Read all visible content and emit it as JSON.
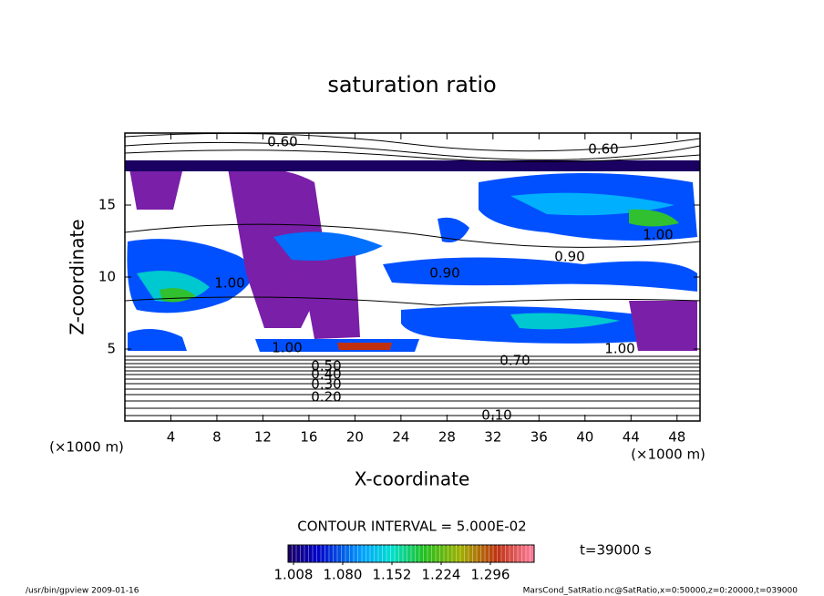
{
  "chart_data": {
    "type": "contour",
    "title": "saturation ratio",
    "x_label": "X-coordinate",
    "y_label": "Z-coordinate",
    "x_unit_label": "(×1000 m)",
    "y_unit_label": "(×1000 m)",
    "xlim": [
      0,
      50
    ],
    "ylim": [
      0,
      20
    ],
    "xticks": [
      4,
      8,
      12,
      16,
      20,
      24,
      28,
      32,
      36,
      40,
      44,
      48
    ],
    "yticks": [
      5,
      10,
      15
    ],
    "contour_interval": "CONTOUR INTERVAL = 5.000E-02",
    "contour_labels": [
      "0.60",
      "0.60",
      "1.00",
      "1.00",
      "0.90",
      "0.90",
      "1.00",
      "1.00",
      "0.70",
      "0.50",
      "0.40",
      "0.30",
      "0.20",
      "0.10"
    ],
    "colorbar": {
      "clim": [
        1.0,
        1.36
      ],
      "ticks": [
        1.008,
        {
          "value": 1.08,
          "label": "1.080"
        },
        1.152,
        1.224,
        1.296
      ]
    },
    "time_label": "t=39000 s",
    "footer_left": "/usr/bin/gpview  2009-01-16",
    "footer_right": "MarsCond_SatRatio.nc@SatRatio,x=0:50000,z=0:20000,t=039000"
  }
}
